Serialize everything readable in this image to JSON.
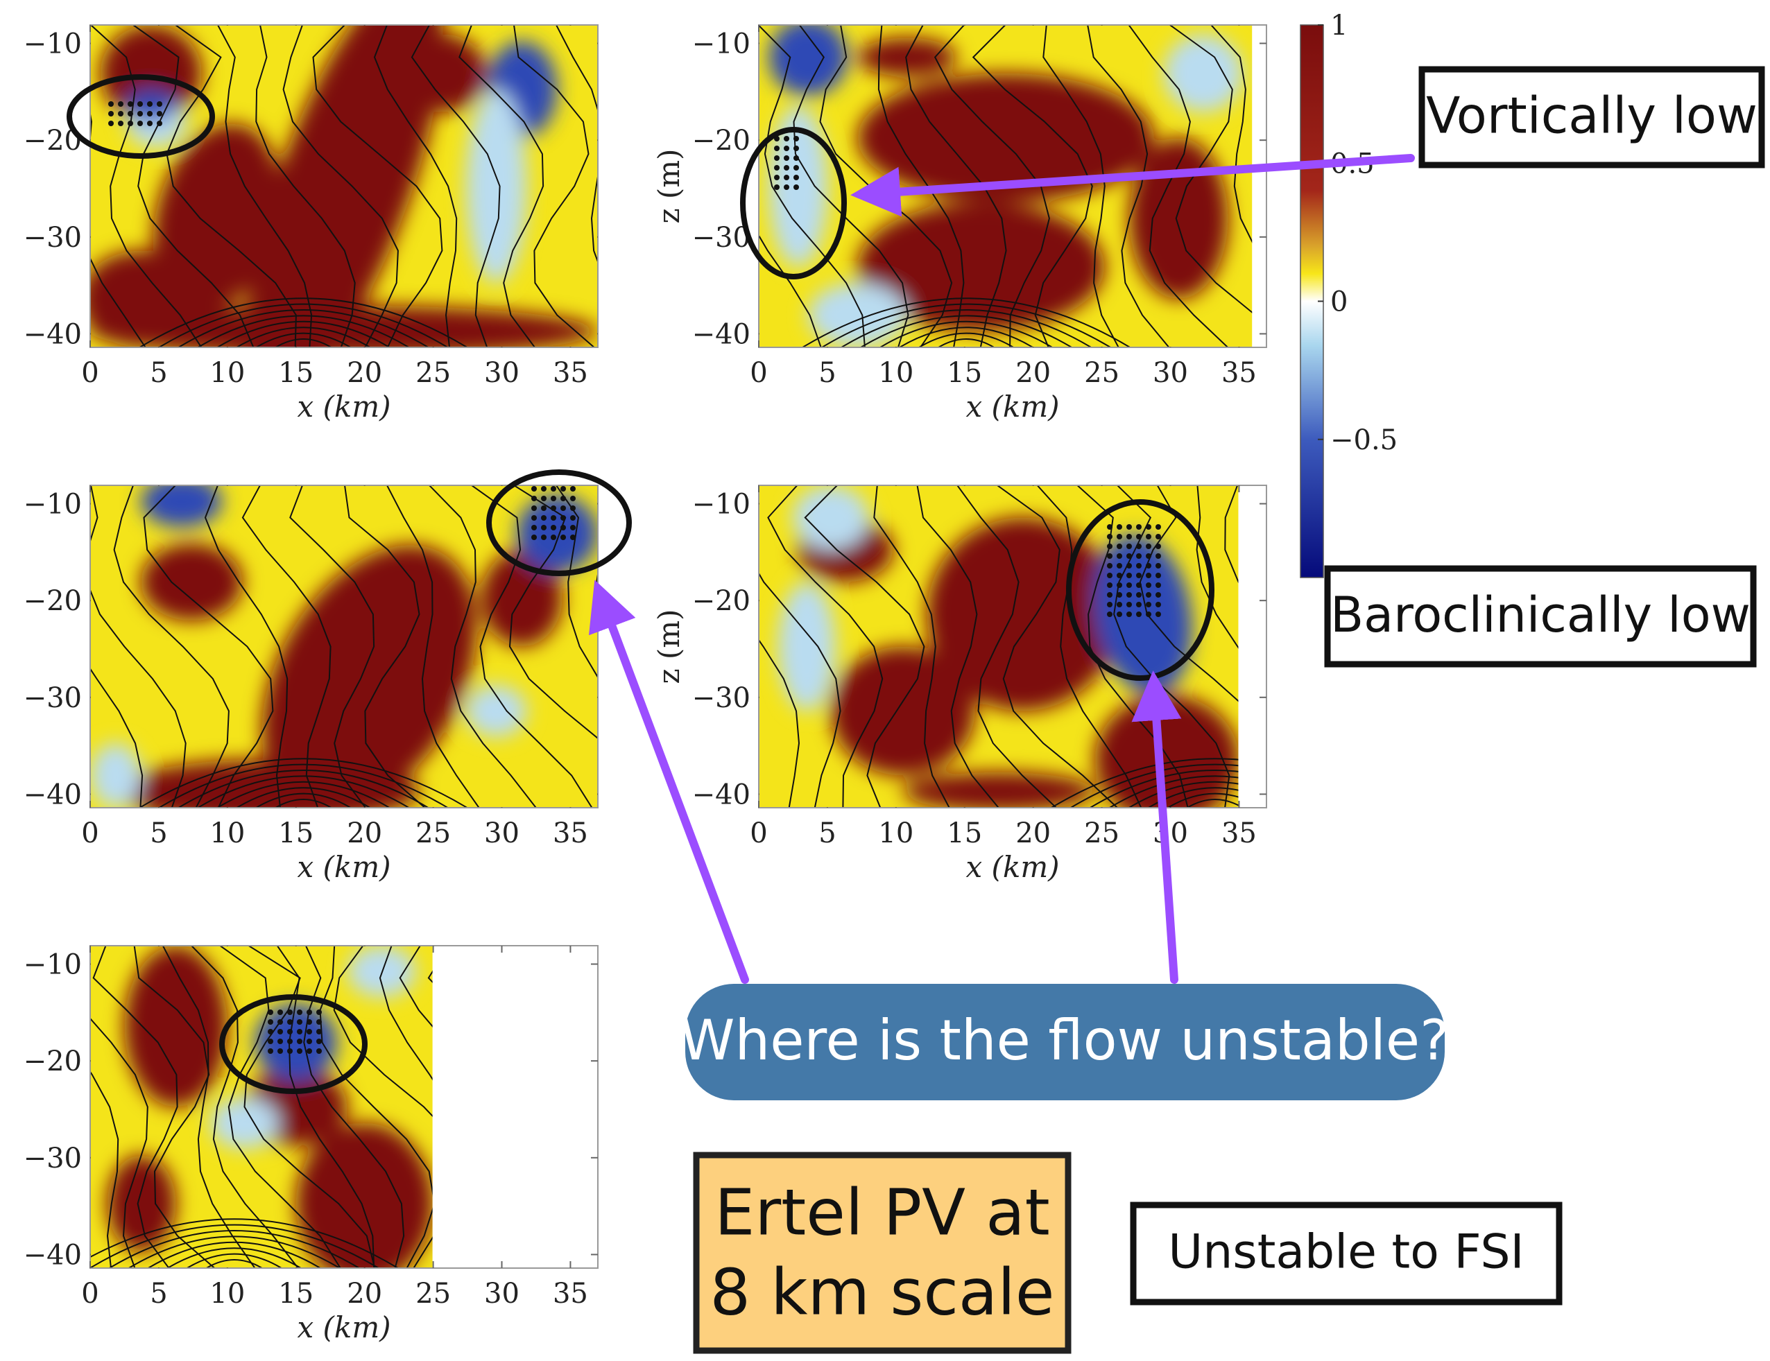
{
  "chart_data": [
    {
      "type": "heatmap",
      "xlim": [
        0,
        37
      ],
      "ylim": [
        -41.4,
        -8.1
      ],
      "xticks": [
        0,
        5,
        10,
        15,
        20,
        25,
        30,
        35
      ],
      "yticks": [
        {
          "value": -10,
          "label": "−10"
        },
        {
          "value": -20,
          "label": "−20"
        },
        {
          "value": -30,
          "label": "−30"
        },
        {
          "value": -40,
          "label": "−40"
        }
      ],
      "xlabel": "x (km)"
    },
    {
      "type": "heatmap",
      "xlim": [
        0,
        37
      ],
      "ylim": [
        -41.4,
        -8.1
      ],
      "xticks": [
        0,
        5,
        10,
        15,
        20,
        25,
        30,
        35
      ],
      "yticks": [
        {
          "value": -10,
          "label": "−10"
        },
        {
          "value": -20,
          "label": "−20"
        },
        {
          "value": -30,
          "label": "−30"
        },
        {
          "value": -40,
          "label": "−40"
        }
      ],
      "xlabel": "x (km)",
      "ylabel": "z (m)"
    },
    {
      "type": "heatmap",
      "xlim": [
        0,
        37
      ],
      "ylim": [
        -41.4,
        -8.1
      ],
      "xticks": [
        0,
        5,
        10,
        15,
        20,
        25,
        30,
        35
      ],
      "yticks": [
        {
          "value": -10,
          "label": "−10"
        },
        {
          "value": -20,
          "label": "−20"
        },
        {
          "value": -30,
          "label": "−30"
        },
        {
          "value": -40,
          "label": "−40"
        }
      ],
      "xlabel": "x (km)"
    },
    {
      "type": "heatmap",
      "xlim": [
        0,
        37
      ],
      "ylim": [
        -41.4,
        -8.1
      ],
      "xticks": [
        0,
        5,
        10,
        15,
        20,
        25,
        30,
        35
      ],
      "yticks": [
        {
          "value": -10,
          "label": "−10"
        },
        {
          "value": -20,
          "label": "−20"
        },
        {
          "value": -30,
          "label": "−30"
        },
        {
          "value": -40,
          "label": "−40"
        }
      ],
      "xlabel": "x (km)",
      "ylabel": "z (m)"
    },
    {
      "type": "heatmap",
      "xlim": [
        0,
        37
      ],
      "ylim": [
        -41.4,
        -8.1
      ],
      "xticks": [
        0,
        5,
        10,
        15,
        20,
        25,
        30,
        35
      ],
      "yticks": [
        {
          "value": -10,
          "label": "−10"
        },
        {
          "value": -20,
          "label": "−20"
        },
        {
          "value": -30,
          "label": "−30"
        },
        {
          "value": -40,
          "label": "−40"
        }
      ],
      "xlabel": "x (km)"
    }
  ],
  "colorbar": {
    "lim": [
      -1,
      1
    ],
    "ticks": [
      1,
      0.5,
      0,
      {
        "value": -0.5,
        "label": "−0.5"
      }
    ]
  },
  "annotations": {
    "vortically": "Vortically low",
    "baroclinically": "Baroclinically low",
    "question": "Where is the flow unstable?",
    "ertel": [
      "Ertel PV at",
      "8 km scale"
    ],
    "fsi": "Unstable to FSI"
  }
}
